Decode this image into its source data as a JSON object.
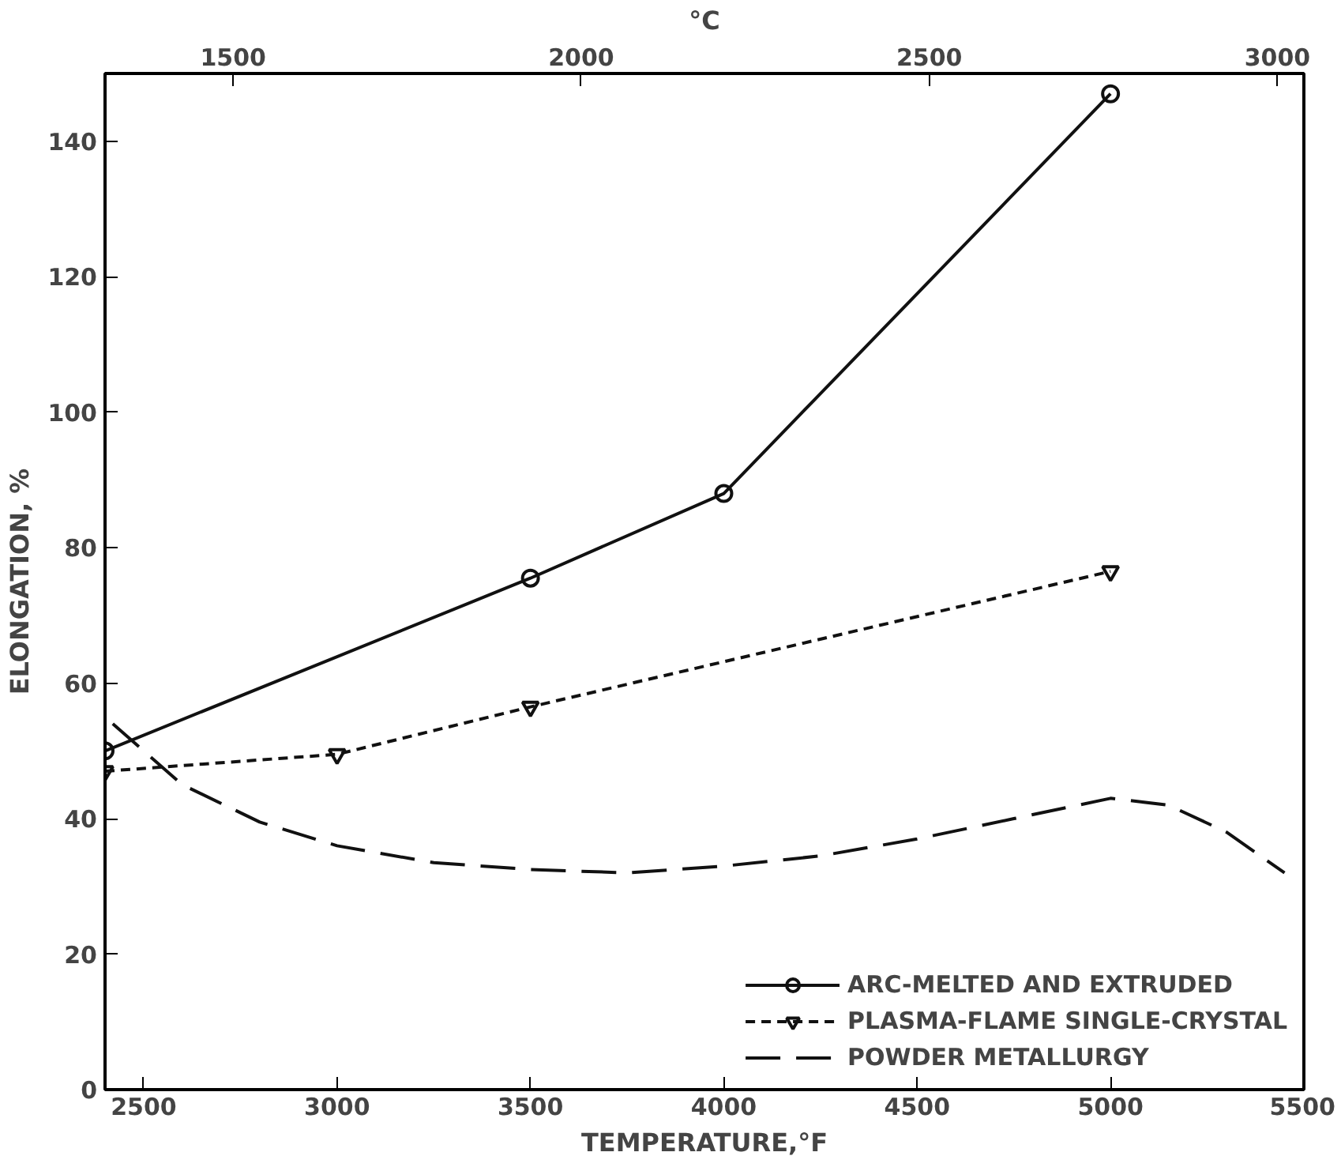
{
  "chart_data": {
    "type": "line",
    "xlabel": "TEMPERATURE,°F",
    "ylabel": "ELONGATION, %",
    "x2label": "°C",
    "xlim": [
      2400,
      5500
    ],
    "xticks": [
      2500,
      3000,
      3500,
      4000,
      4500,
      5000,
      5500
    ],
    "x2lim": [
      1316,
      3038
    ],
    "x2ticks": [
      1500,
      2000,
      2500,
      3000
    ],
    "ylim": [
      0,
      150
    ],
    "yticks": [
      0,
      20,
      40,
      60,
      80,
      100,
      120,
      140
    ],
    "grid": false,
    "legend": "bottom right",
    "series": [
      {
        "name": "ARC-MELTED AND EXTRUDED",
        "color": "#111111",
        "marker": "circle",
        "line_style": "solid",
        "x": [
          2400,
          3500,
          4000,
          5000
        ],
        "values": [
          50,
          75.5,
          88,
          147
        ]
      },
      {
        "name": "PLASMA-FLAME SINGLE-CRYSTAL",
        "color": "#111111",
        "marker": "triangle",
        "line_style": "dashed",
        "x": [
          2400,
          3000,
          3500,
          5000
        ],
        "values": [
          47,
          49.5,
          56.5,
          76.5
        ]
      },
      {
        "name": "POWDER METALLURGY",
        "color": "#111111",
        "marker": "none",
        "line_style": "longdash",
        "x": [
          2420,
          2500,
          2600,
          2800,
          3000,
          3250,
          3500,
          3750,
          4000,
          4250,
          4500,
          4750,
          5000,
          5150,
          5300,
          5450
        ],
        "values": [
          54,
          50,
          45,
          39.5,
          36,
          33.5,
          32.5,
          32,
          33,
          34.5,
          37,
          40,
          43,
          42,
          38,
          32
        ]
      }
    ]
  }
}
